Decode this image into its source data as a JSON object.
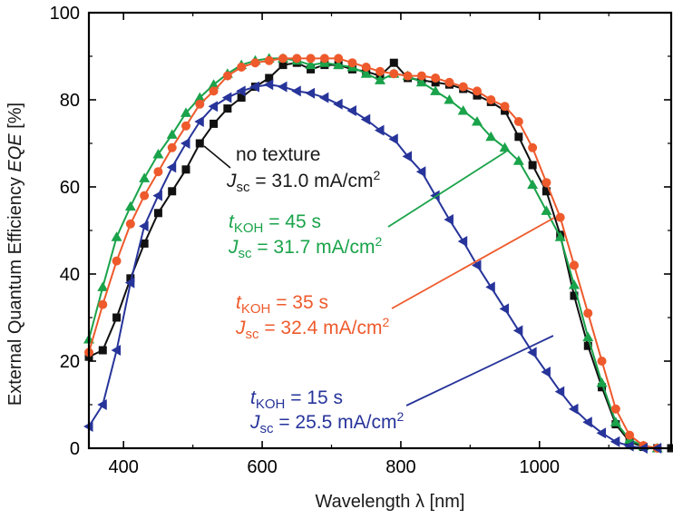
{
  "chart_data": {
    "type": "line",
    "xlabel_text": "Wavelength ",
    "xlabel_symbol": "λ",
    "xlabel_unit": " [nm]",
    "ylabel_text": "External Quantum Efficiency ",
    "ylabel_italic": "EQE",
    "ylabel_unit": " [%]",
    "xlim": [
      350,
      1190
    ],
    "ylim": [
      0,
      100
    ],
    "x_ticks": [
      400,
      600,
      800,
      1000
    ],
    "y_ticks": [
      0,
      20,
      40,
      60,
      80,
      100
    ],
    "grid": false,
    "series": [
      {
        "name": "no texture",
        "color": "#111111",
        "marker": "square",
        "annotation": {
          "line1_text": "no texture",
          "line2_symbol": "J",
          "line2_sub": "sc",
          "line2_value": " = 31.0 mA/cm",
          "line2_sup": "2"
        },
        "x": [
          350,
          370,
          390,
          410,
          430,
          450,
          470,
          490,
          510,
          530,
          550,
          570,
          590,
          610,
          630,
          650,
          670,
          690,
          710,
          730,
          750,
          770,
          790,
          810,
          830,
          850,
          870,
          890,
          910,
          930,
          950,
          970,
          990,
          1010,
          1030,
          1050,
          1070,
          1090,
          1110,
          1130,
          1150,
          1170,
          1190
        ],
        "y": [
          21,
          22.5,
          30,
          39,
          47,
          54,
          59,
          64,
          70,
          74.5,
          78,
          80.5,
          83,
          85,
          88,
          88.5,
          87,
          88,
          88,
          87,
          86.5,
          85.5,
          88.5,
          85,
          84.5,
          84,
          83.5,
          82.5,
          81,
          79.5,
          77.5,
          71.5,
          65,
          59,
          49,
          35,
          23.5,
          14,
          5.5,
          1.5,
          0.3,
          0,
          0
        ]
      },
      {
        "name": "tKOH = 45 s",
        "color": "#1aa34a",
        "marker": "triangle-up",
        "annotation": {
          "line1_symbol": "t",
          "line1_sub": "KOH",
          "line1_value": " = 45 s",
          "line2_symbol": "J",
          "line2_sub": "sc",
          "line2_value": " = 31.7 mA/cm",
          "line2_sup": "2"
        },
        "x": [
          350,
          370,
          390,
          410,
          430,
          450,
          470,
          490,
          510,
          530,
          550,
          570,
          590,
          610,
          630,
          650,
          670,
          690,
          710,
          730,
          750,
          770,
          790,
          810,
          830,
          850,
          870,
          890,
          910,
          930,
          950,
          970,
          990,
          1010,
          1030,
          1050,
          1070,
          1090,
          1110,
          1130,
          1150,
          1170
        ],
        "y": [
          25,
          37,
          48.5,
          55.5,
          62,
          67.5,
          72,
          77,
          80.5,
          83.5,
          86,
          88,
          89,
          89.5,
          89.5,
          89,
          88,
          88.5,
          88,
          87.5,
          86,
          84.5,
          86,
          85.5,
          84,
          82,
          80,
          77.5,
          75,
          71.5,
          69,
          66,
          60.5,
          54.5,
          48.5,
          37.5,
          25.5,
          15,
          6,
          2,
          0.5,
          0
        ]
      },
      {
        "name": "tKOH = 35 s",
        "color": "#ee5a2c",
        "marker": "circle",
        "annotation": {
          "line1_symbol": "t",
          "line1_sub": "KOH",
          "line1_value": " = 35 s",
          "line2_symbol": "J",
          "line2_sub": "sc",
          "line2_value": " = 32.4 mA/cm",
          "line2_sup": "2"
        },
        "x": [
          350,
          370,
          390,
          410,
          430,
          450,
          470,
          490,
          510,
          530,
          550,
          570,
          590,
          610,
          630,
          650,
          670,
          690,
          710,
          730,
          750,
          770,
          790,
          810,
          830,
          850,
          870,
          890,
          910,
          930,
          950,
          970,
          990,
          1010,
          1030,
          1050,
          1070,
          1090,
          1110,
          1130,
          1150,
          1170
        ],
        "y": [
          22,
          33,
          43,
          51.5,
          58,
          63.5,
          69,
          74,
          79,
          82,
          85.5,
          87.5,
          88.5,
          89,
          89.5,
          89.5,
          89.5,
          89.5,
          89.5,
          88.5,
          87.5,
          86.5,
          86,
          85.5,
          85.5,
          85,
          84,
          83,
          82,
          80,
          78.5,
          75,
          69,
          61,
          53,
          42,
          31,
          20,
          9,
          3,
          0.6,
          0
        ]
      },
      {
        "name": "tKOH = 15 s",
        "color": "#27349a",
        "marker": "triangle-left",
        "annotation": {
          "line1_symbol": "t",
          "line1_sub": "KOH",
          "line1_value": " = 15 s",
          "line2_symbol": "J",
          "line2_sub": "sc",
          "line2_value": " = 25.5 mA/cm",
          "line2_sup": "2"
        },
        "x": [
          350,
          370,
          390,
          410,
          430,
          450,
          470,
          490,
          510,
          530,
          550,
          570,
          590,
          610,
          630,
          650,
          670,
          690,
          710,
          730,
          750,
          770,
          790,
          810,
          830,
          850,
          870,
          890,
          910,
          930,
          950,
          970,
          990,
          1010,
          1030,
          1050,
          1070,
          1090,
          1110,
          1130,
          1150,
          1170
        ],
        "y": [
          5,
          10,
          22.5,
          38,
          51,
          58,
          64.5,
          70,
          75,
          78.5,
          80.5,
          82,
          83,
          83.5,
          83,
          82,
          81.5,
          80.5,
          79,
          77.5,
          75.5,
          73,
          71,
          67,
          63.5,
          58,
          52.5,
          47.5,
          42,
          37,
          32,
          27,
          22,
          17.5,
          13,
          9,
          6,
          3.5,
          1.5,
          0.5,
          0,
          0
        ]
      }
    ]
  }
}
